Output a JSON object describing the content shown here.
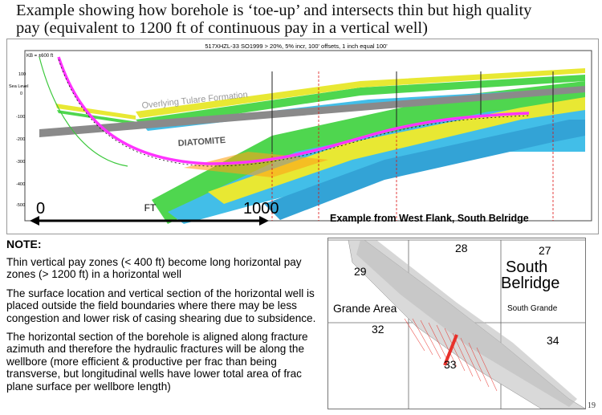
{
  "title": {
    "line1": "Example showing how borehole is ‘toe-up’ and intersects thin but high quality",
    "line2": "pay (equivalent to 1200 ft of continuous pay in a vertical well)"
  },
  "section": {
    "header": "517XHZL-33   SO1999 > 20%, 5% incr, 100' offsets, 1 inch equal 100'",
    "kb_label": "KB = ±600 ft",
    "sea_level": "Sea Level",
    "depth_ticks": [
      "100",
      "0",
      "-100",
      "-200",
      "-300",
      "-400",
      "-500",
      "-600"
    ],
    "formation_label": "Overlying Tulare Formation",
    "diatomite_label": "DIATOMITE",
    "scale_start": "0",
    "scale_unit": "FT",
    "scale_end": "1000",
    "caption": "Example from West Flank, South Belridge"
  },
  "note": {
    "heading": "NOTE:",
    "p1": "Thin vertical pay zones (< 400 ft) become long horizontal pay zones (> 1200 ft) in a horizontal well",
    "p2": "The surface location and vertical section of the horizontal well is placed outside the field boundaries where there may be less congestion and lower risk of casing shearing due to subsidence.",
    "p3": "The horizontal section of the borehole is aligned along fracture azimuth and therefore the hydraulic fractures will be along the wellbore (more efficient & productive per frac than being transverse, but longitudinal wells have lower total area of frac plane surface per wellbore length)"
  },
  "map": {
    "sec28": "28",
    "sec27": "27",
    "sec29": "29",
    "field_name_1": "South",
    "field_name_2": "Belridge",
    "grande_area": "Grande Area",
    "sec32": "32",
    "south_grande": "South Grande",
    "sec34": "34",
    "sec33": "33"
  },
  "page_number": "19",
  "colors": {
    "wellbore": "#ff33ff",
    "diatomite_band": "#8a8a8a",
    "pay_green": "#3cd23c",
    "pay_cyan": "#2eb8e6",
    "pay_yellow": "#e6e61e",
    "map_highlight": "#e8302a"
  }
}
